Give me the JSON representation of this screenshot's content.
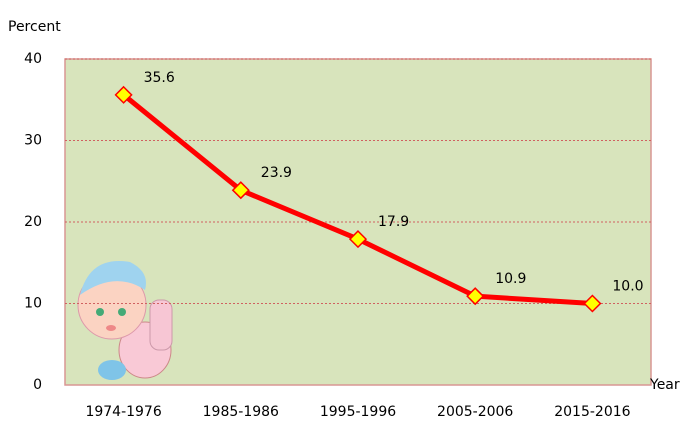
{
  "chart_data": {
    "type": "line",
    "y_label": "Percent",
    "x_label": "Year",
    "categories": [
      "1974-1976",
      "1985-1986",
      "1995-1996",
      "2005-2006",
      "2015-2016"
    ],
    "values": [
      35.6,
      23.9,
      17.9,
      10.9,
      10
    ],
    "value_labels": [
      "35.6",
      "23.9",
      "17.9",
      "10.9",
      "10.0"
    ],
    "color": "#ff0000",
    "marker_color": "#ffff00",
    "ylim": [
      0,
      40
    ],
    "yticks": [
      0,
      10,
      20,
      30,
      40
    ],
    "grid": true
  }
}
